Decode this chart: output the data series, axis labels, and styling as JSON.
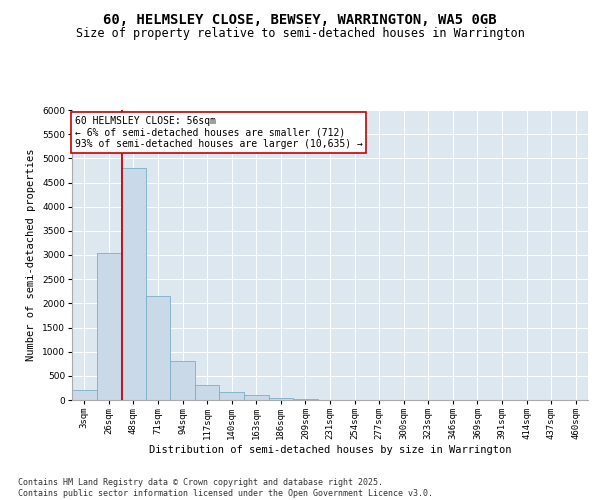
{
  "title": "60, HELMSLEY CLOSE, BEWSEY, WARRINGTON, WA5 0GB",
  "subtitle": "Size of property relative to semi-detached houses in Warrington",
  "xlabel": "Distribution of semi-detached houses by size in Warrington",
  "ylabel": "Number of semi-detached properties",
  "categories": [
    "3sqm",
    "26sqm",
    "48sqm",
    "71sqm",
    "94sqm",
    "117sqm",
    "140sqm",
    "163sqm",
    "186sqm",
    "209sqm",
    "231sqm",
    "254sqm",
    "277sqm",
    "300sqm",
    "323sqm",
    "346sqm",
    "369sqm",
    "391sqm",
    "414sqm",
    "437sqm",
    "460sqm"
  ],
  "bar_values": [
    200,
    3050,
    4800,
    2150,
    800,
    310,
    165,
    105,
    50,
    15,
    5,
    3,
    2,
    1,
    1,
    1,
    0,
    0,
    0,
    0,
    0
  ],
  "bar_color": "#c9d9e8",
  "bar_edge_color": "#7aafc8",
  "vline_color": "#cc0000",
  "vline_x": 1.55,
  "annotation_text": "60 HELMSLEY CLOSE: 56sqm\n← 6% of semi-detached houses are smaller (712)\n93% of semi-detached houses are larger (10,635) →",
  "annotation_box_color": "white",
  "annotation_box_edge": "#cc0000",
  "ylim": [
    0,
    6000
  ],
  "yticks": [
    0,
    500,
    1000,
    1500,
    2000,
    2500,
    3000,
    3500,
    4000,
    4500,
    5000,
    5500,
    6000
  ],
  "background_color": "#dde7f0",
  "footer": "Contains HM Land Registry data © Crown copyright and database right 2025.\nContains public sector information licensed under the Open Government Licence v3.0.",
  "title_fontsize": 10,
  "subtitle_fontsize": 8.5,
  "axis_label_fontsize": 7.5,
  "tick_fontsize": 6.5,
  "annotation_fontsize": 7,
  "footer_fontsize": 6
}
